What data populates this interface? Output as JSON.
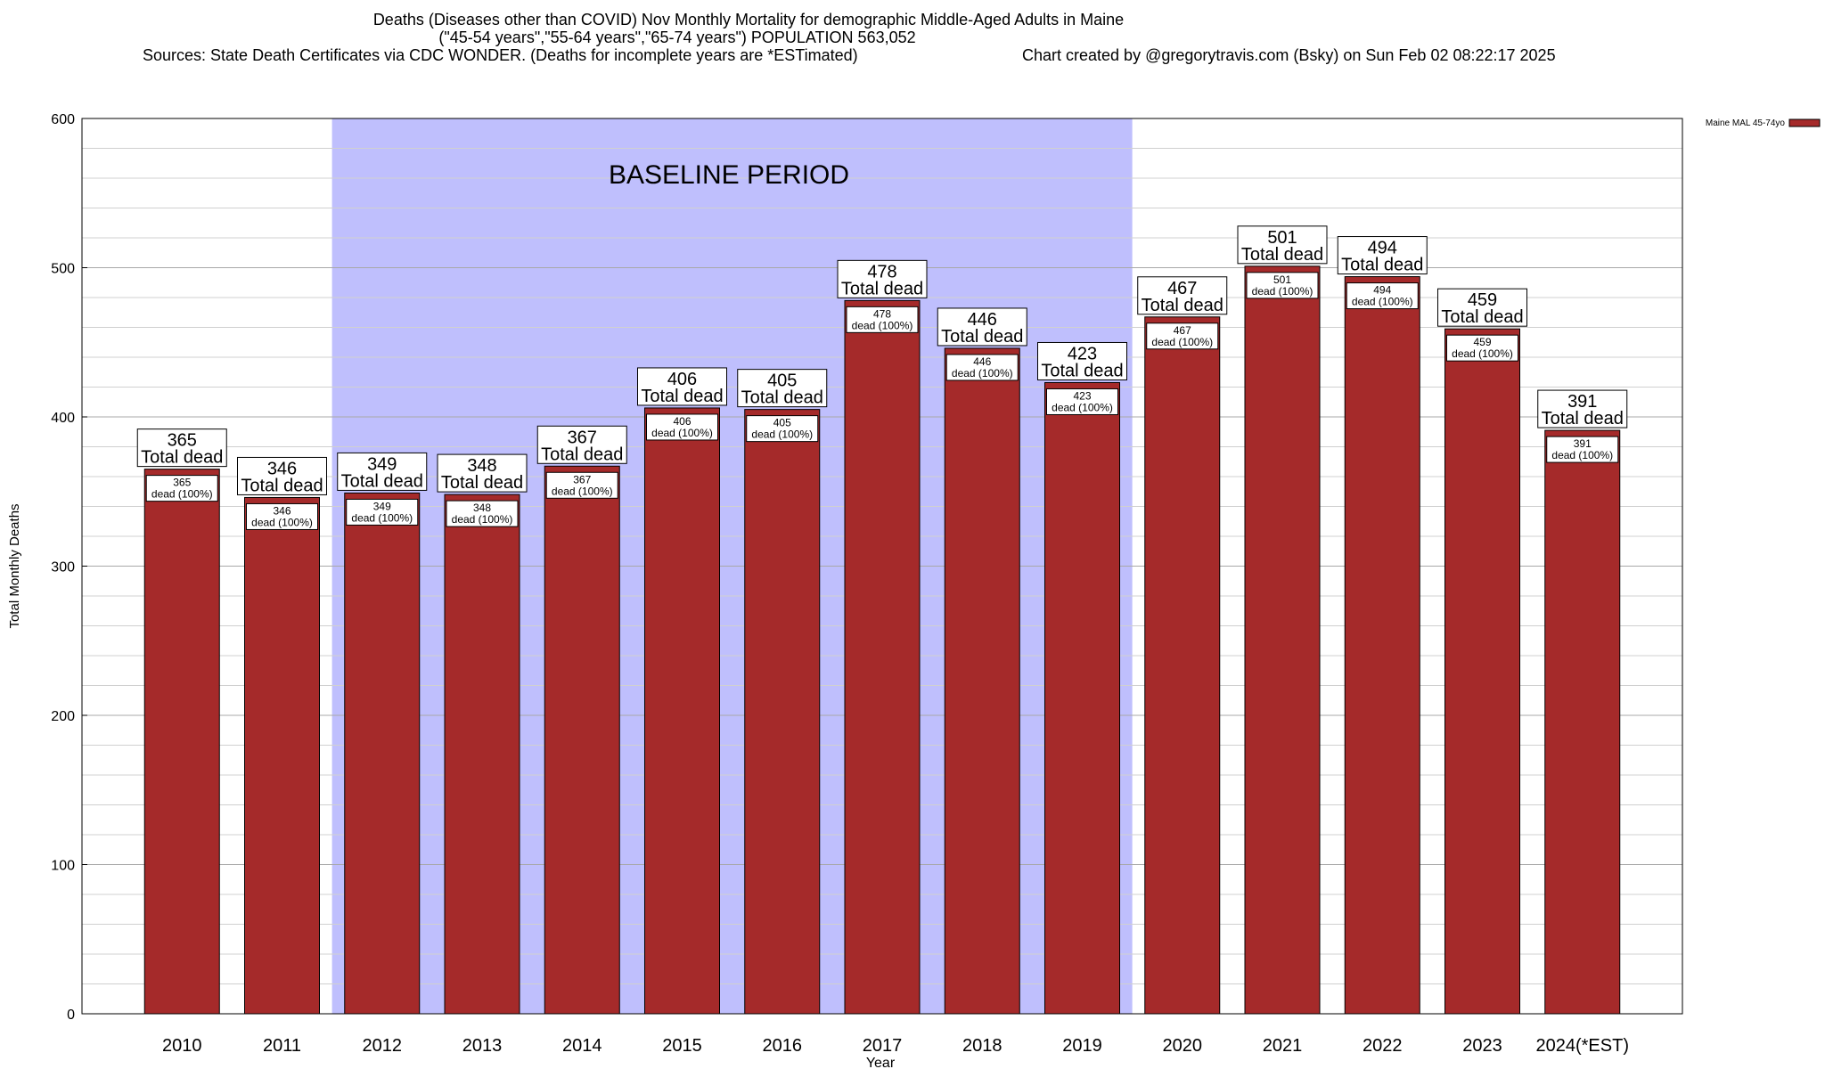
{
  "title": {
    "line1": "Deaths (Diseases other than COVID) Nov Monthly Mortality for demographic Middle-Aged Adults in Maine",
    "line2": "(\"45-54 years\",\"55-64 years\",\"65-74 years\") POPULATION 563,052",
    "line3": "Sources: State Death Certificates via CDC WONDER. (Deaths for incomplete years are *ESTimated)",
    "credit": "Chart created by @gregorytravis.com (Bsky) on Sun Feb 02 08:22:17 2025"
  },
  "colors": {
    "bar": "#a52a2a",
    "bar_top": "#8a1d1d",
    "baseline_band": "#bfbffd",
    "grid": "#d0d0d0"
  },
  "chart_data": {
    "type": "bar",
    "categories": [
      "2010",
      "2011",
      "2012",
      "2013",
      "2014",
      "2015",
      "2016",
      "2017",
      "2018",
      "2019",
      "2020",
      "2021",
      "2022",
      "2023",
      "2024(*EST)"
    ],
    "series": [
      {
        "name": "Maine MAL 45-74yo",
        "values": [
          365,
          346,
          349,
          348,
          367,
          406,
          405,
          478,
          446,
          423,
          467,
          501,
          494,
          459,
          391
        ]
      }
    ],
    "bar_label_suffix": "Total dead",
    "inner_label_suffix": "dead (100%)",
    "xlabel": "Year",
    "ylabel": "Total Monthly Deaths",
    "ylim": [
      0,
      600
    ],
    "yticks": [
      0,
      100,
      200,
      300,
      400,
      500,
      600
    ],
    "minor_step": 20,
    "legend": {
      "label": "Maine MAL 45-74yo",
      "placement": "top-right outside"
    },
    "annotation": {
      "text": "BASELINE PERIOD",
      "from_category": "2012",
      "to_category": "2019"
    }
  }
}
